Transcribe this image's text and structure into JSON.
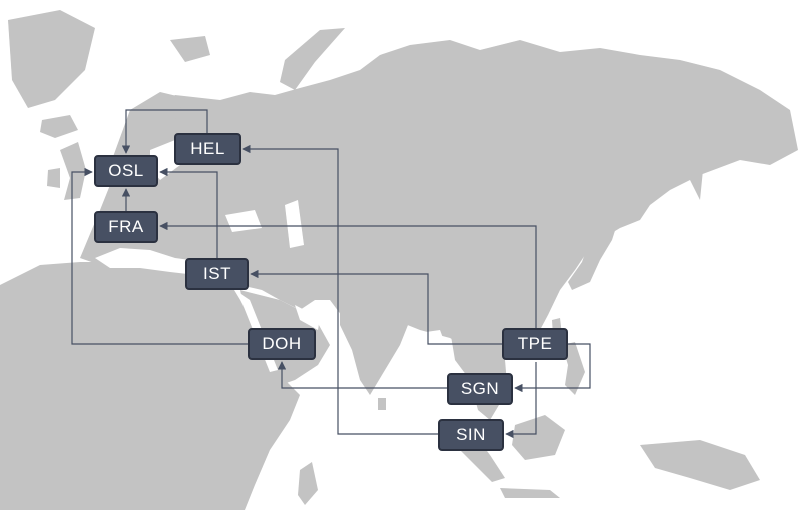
{
  "map": {
    "land_color": "#c3c3c3",
    "background_color": "#ffffff",
    "edge_color": "#475063"
  },
  "airports": {
    "OSL": {
      "code": "OSL"
    },
    "HEL": {
      "code": "HEL"
    },
    "FRA": {
      "code": "FRA"
    },
    "IST": {
      "code": "IST"
    },
    "DOH": {
      "code": "DOH"
    },
    "TPE": {
      "code": "TPE"
    },
    "SGN": {
      "code": "SGN"
    },
    "SIN": {
      "code": "SIN"
    }
  },
  "node_style": {
    "fill": "#475063",
    "border": "#2b3140",
    "text": "#ffffff"
  },
  "routes": [
    {
      "from": "HEL",
      "to": "OSL"
    },
    {
      "from": "IST",
      "to": "OSL"
    },
    {
      "from": "FRA",
      "to": "OSL"
    },
    {
      "from": "DOH",
      "to": "OSL"
    },
    {
      "from": "SIN",
      "to": "HEL"
    },
    {
      "from": "TPE",
      "to": "FRA"
    },
    {
      "from": "TPE",
      "to": "IST"
    },
    {
      "from": "TPE",
      "to": "SGN"
    },
    {
      "from": "SGN",
      "to": "DOH"
    },
    {
      "from": "TPE",
      "to": "SIN"
    }
  ]
}
